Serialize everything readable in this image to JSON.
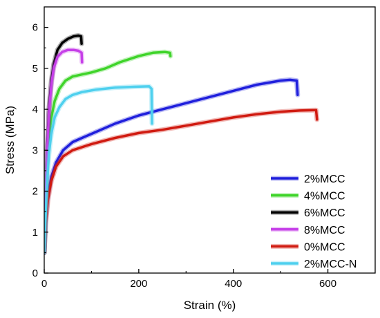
{
  "chart_data": {
    "type": "line",
    "title": "",
    "xlabel": "Strain (%)",
    "ylabel": "Stress (MPa)",
    "xlim": [
      0,
      700
    ],
    "ylim": [
      0,
      6.5
    ],
    "xticks": [
      0,
      200,
      400,
      600
    ],
    "yticks": [
      0,
      1,
      2,
      3,
      4,
      5,
      6
    ],
    "grid": false,
    "legend_position": "bottom-right",
    "series": [
      {
        "name": "2%MCC",
        "color": "#1f1fdc",
        "points": [
          [
            0,
            0.5
          ],
          [
            3,
            1.3
          ],
          [
            8,
            1.9
          ],
          [
            15,
            2.35
          ],
          [
            25,
            2.7
          ],
          [
            40,
            3.0
          ],
          [
            60,
            3.2
          ],
          [
            80,
            3.3
          ],
          [
            100,
            3.4
          ],
          [
            150,
            3.65
          ],
          [
            200,
            3.85
          ],
          [
            250,
            4.0
          ],
          [
            300,
            4.15
          ],
          [
            350,
            4.3
          ],
          [
            400,
            4.45
          ],
          [
            450,
            4.6
          ],
          [
            500,
            4.7
          ],
          [
            520,
            4.72
          ],
          [
            534,
            4.7
          ],
          [
            536,
            4.35
          ]
        ]
      },
      {
        "name": "4%MCC",
        "color": "#3fd42a",
        "points": [
          [
            0,
            0.5
          ],
          [
            3,
            1.8
          ],
          [
            6,
            2.6
          ],
          [
            10,
            3.3
          ],
          [
            15,
            3.8
          ],
          [
            22,
            4.2
          ],
          [
            32,
            4.5
          ],
          [
            45,
            4.7
          ],
          [
            60,
            4.8
          ],
          [
            80,
            4.85
          ],
          [
            100,
            4.9
          ],
          [
            130,
            5.0
          ],
          [
            160,
            5.15
          ],
          [
            200,
            5.3
          ],
          [
            230,
            5.38
          ],
          [
            255,
            5.4
          ],
          [
            266,
            5.38
          ],
          [
            267,
            5.3
          ]
        ]
      },
      {
        "name": "6%MCC",
        "color": "#000000",
        "points": [
          [
            0,
            0.5
          ],
          [
            3,
            1.8
          ],
          [
            6,
            3.0
          ],
          [
            10,
            4.0
          ],
          [
            15,
            4.7
          ],
          [
            20,
            5.1
          ],
          [
            28,
            5.45
          ],
          [
            38,
            5.62
          ],
          [
            50,
            5.72
          ],
          [
            62,
            5.78
          ],
          [
            72,
            5.8
          ],
          [
            78,
            5.78
          ],
          [
            79,
            5.6
          ]
        ]
      },
      {
        "name": "8%MCC",
        "color": "#c640e8",
        "points": [
          [
            0,
            0.5
          ],
          [
            3,
            1.8
          ],
          [
            6,
            2.9
          ],
          [
            10,
            3.9
          ],
          [
            15,
            4.6
          ],
          [
            20,
            5.0
          ],
          [
            28,
            5.28
          ],
          [
            38,
            5.4
          ],
          [
            50,
            5.45
          ],
          [
            62,
            5.45
          ],
          [
            72,
            5.43
          ],
          [
            79,
            5.38
          ],
          [
            80,
            5.15
          ]
        ]
      },
      {
        "name": "0%MCC",
        "color": "#d01a10",
        "points": [
          [
            0,
            0.5
          ],
          [
            3,
            1.2
          ],
          [
            8,
            1.8
          ],
          [
            15,
            2.25
          ],
          [
            25,
            2.6
          ],
          [
            40,
            2.85
          ],
          [
            60,
            3.0
          ],
          [
            100,
            3.15
          ],
          [
            150,
            3.3
          ],
          [
            200,
            3.42
          ],
          [
            250,
            3.5
          ],
          [
            300,
            3.6
          ],
          [
            350,
            3.7
          ],
          [
            400,
            3.8
          ],
          [
            450,
            3.88
          ],
          [
            500,
            3.94
          ],
          [
            540,
            3.97
          ],
          [
            575,
            3.98
          ],
          [
            577,
            3.75
          ]
        ]
      },
      {
        "name": "2%MCC-N",
        "color": "#4ed0ee",
        "points": [
          [
            0,
            0.5
          ],
          [
            3,
            1.4
          ],
          [
            6,
            2.2
          ],
          [
            10,
            2.9
          ],
          [
            15,
            3.4
          ],
          [
            22,
            3.8
          ],
          [
            32,
            4.05
          ],
          [
            45,
            4.25
          ],
          [
            60,
            4.35
          ],
          [
            80,
            4.42
          ],
          [
            110,
            4.48
          ],
          [
            150,
            4.53
          ],
          [
            190,
            4.55
          ],
          [
            222,
            4.56
          ],
          [
            227,
            4.5
          ],
          [
            228,
            3.65
          ]
        ]
      }
    ]
  }
}
